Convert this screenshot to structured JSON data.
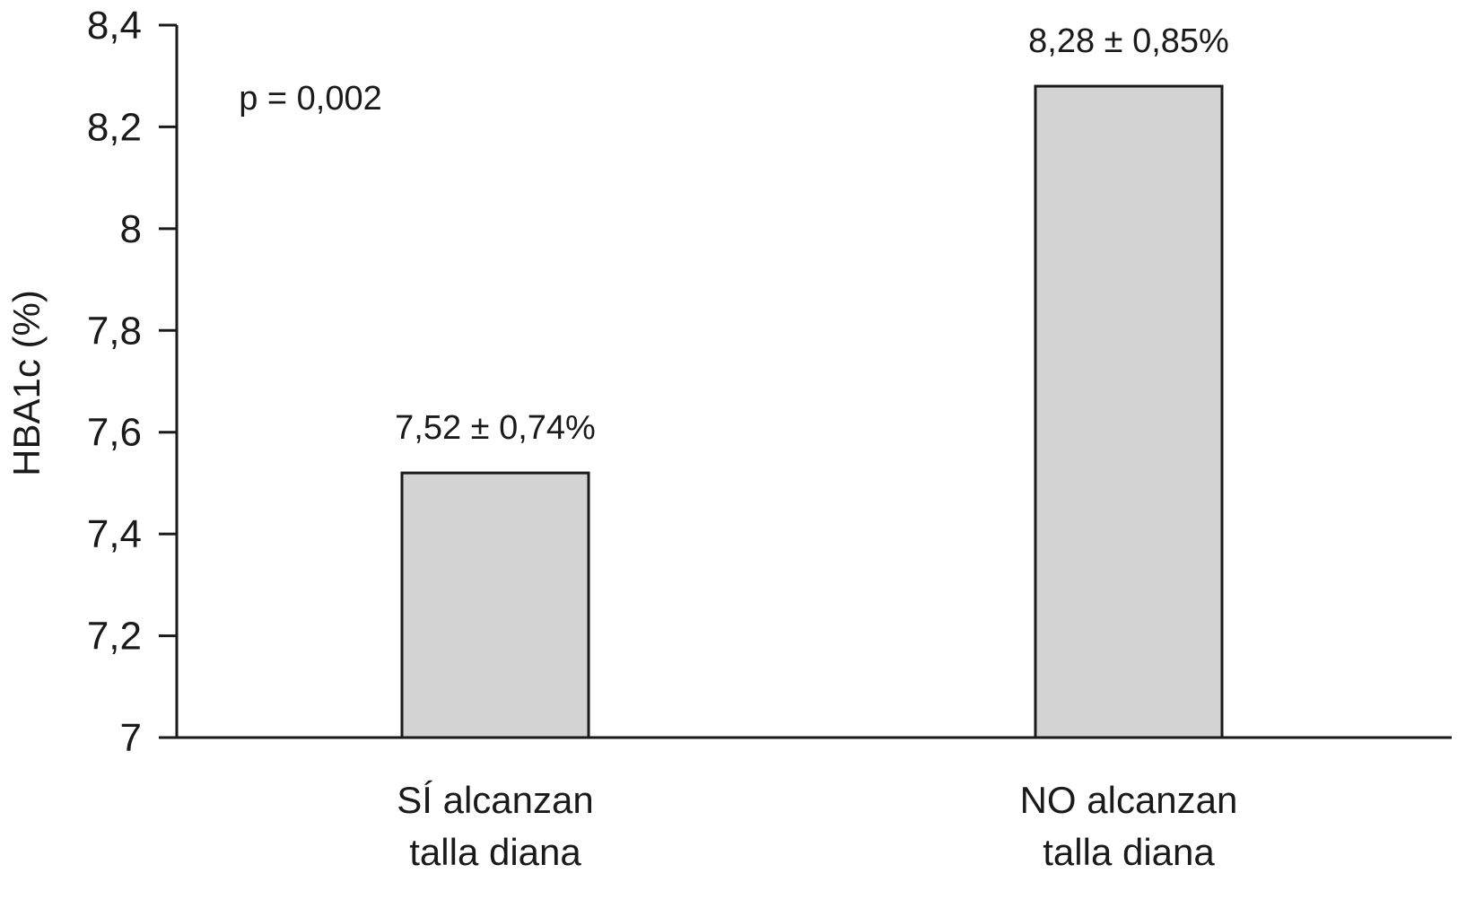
{
  "chart_data": {
    "type": "bar",
    "categories": [
      [
        "SÍ alcanzan",
        "talla diana"
      ],
      [
        "NO alcanzan",
        "talla diana"
      ]
    ],
    "values": [
      7.52,
      8.28
    ],
    "value_labels": [
      "7,52 ± 0,74%",
      "8,28 ± 0,85%"
    ],
    "ylabel": "HBA1c (%)",
    "ylim": [
      7,
      8.4
    ],
    "yticks": [
      7,
      7.2,
      7.4,
      7.6,
      7.8,
      8,
      8.2,
      8.4
    ],
    "ytick_labels": [
      "7",
      "7,2",
      "7,4",
      "7,6",
      "7,8",
      "8",
      "8,2",
      "8,4"
    ],
    "annotation": "p = 0,002",
    "grid": false,
    "colors": {
      "bar_fill": "#d3d3d3",
      "bar_stroke": "#1a1a1a",
      "axis": "#1a1a1a"
    }
  }
}
